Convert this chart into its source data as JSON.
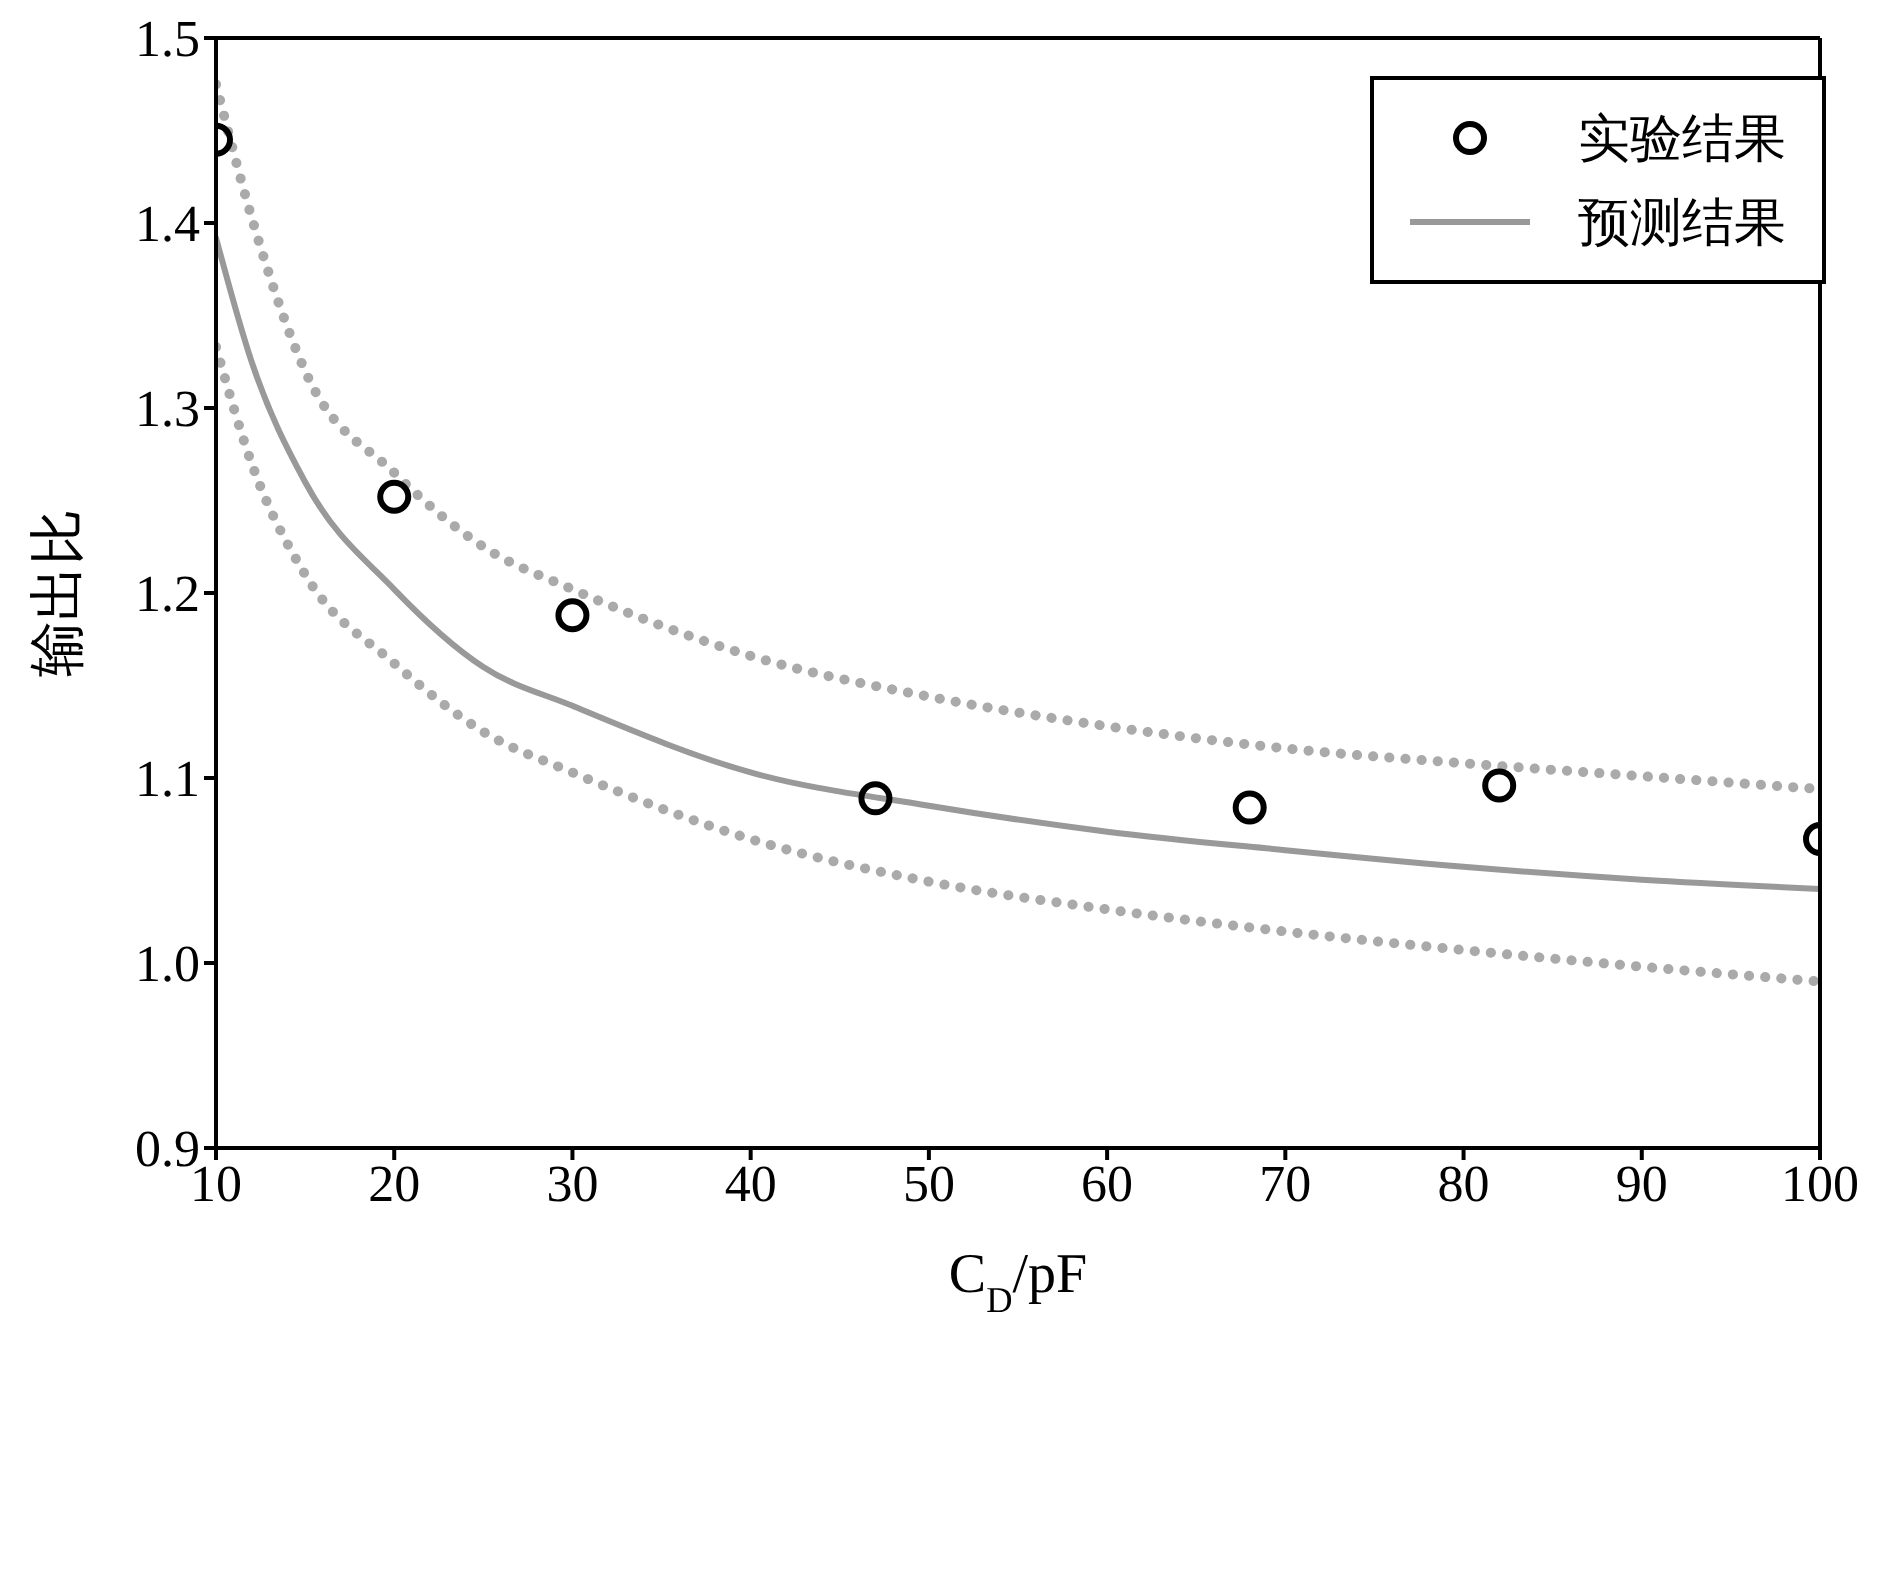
{
  "chart_data": {
    "type": "line",
    "xlabel": "C$_{D}$/pF",
    "ylabel": "输出比",
    "xlim": [
      10,
      100
    ],
    "xticks": [
      10,
      20,
      30,
      40,
      50,
      60,
      70,
      80,
      90,
      100
    ],
    "ylim": [
      0.9,
      1.5
    ],
    "yticks": [
      0.9,
      {
        "value": 1,
        "label": "1.0"
      },
      1.1,
      1.2,
      1.3,
      1.4,
      1.5
    ],
    "legend": "top right",
    "series": [
      {
        "name": "实验结果",
        "type": "scatter",
        "marker": "circle",
        "color": "#000000",
        "x": [
          10,
          20,
          30,
          47,
          68,
          82,
          100
        ],
        "values": [
          1.445,
          1.252,
          1.188,
          1.089,
          1.084,
          1.096,
          1.067
        ]
      },
      {
        "name": "预测结果",
        "marker": "none",
        "line_style": "solid",
        "color": "#999999",
        "x": [
          10,
          12,
          15,
          20,
          25,
          30,
          40,
          50,
          60,
          70,
          80,
          90,
          100
        ],
        "values": [
          1.392,
          1.325,
          1.26,
          1.202,
          1.16,
          1.139,
          1.103,
          1.085,
          1.071,
          1.061,
          1.052,
          1.045,
          1.04
        ]
      },
      {
        "marker": "none",
        "line_style": "dotted",
        "color": "#aaaaaa",
        "x": [
          10,
          12,
          15,
          20,
          25,
          30,
          40,
          50,
          60,
          70,
          80,
          90,
          100
        ],
        "values": [
          1.475,
          1.403,
          1.32,
          1.265,
          1.225,
          1.202,
          1.166,
          1.144,
          1.128,
          1.116,
          1.108,
          1.101,
          1.094
        ]
      },
      {
        "marker": "none",
        "line_style": "dotted",
        "color": "#aaaaaa",
        "x": [
          10,
          12,
          15,
          20,
          25,
          30,
          40,
          50,
          60,
          70,
          80,
          90,
          100
        ],
        "values": [
          1.333,
          1.27,
          1.21,
          1.162,
          1.125,
          1.103,
          1.067,
          1.044,
          1.029,
          1.017,
          1.007,
          0.998,
          0.99
        ]
      }
    ]
  }
}
